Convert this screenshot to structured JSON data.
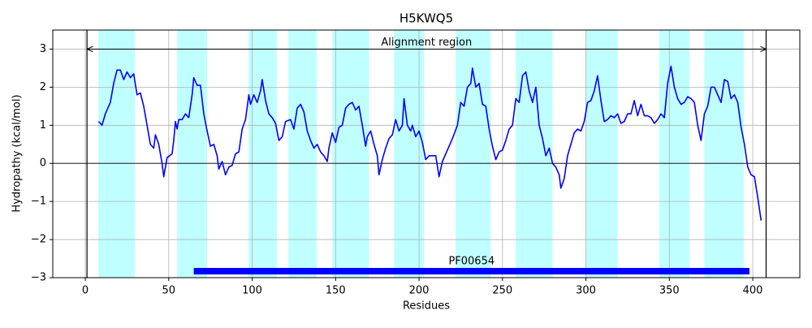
{
  "chart_data": {
    "type": "line",
    "title": "H5KWQ5",
    "x_label": "Residues",
    "y_label": "Hydropathy (kcal/mol)",
    "color": "#0000ff",
    "x": [
      8,
      10,
      12,
      15,
      17,
      19,
      21,
      23,
      25,
      27,
      29,
      31,
      33,
      35,
      37,
      39,
      41,
      42,
      44,
      46,
      47,
      49,
      52,
      53,
      54,
      55,
      56,
      58,
      60,
      62,
      64,
      65,
      67,
      69,
      71,
      73,
      75,
      77,
      79,
      80,
      82,
      84,
      86,
      88,
      90,
      92,
      94,
      96,
      98,
      99,
      101,
      103,
      105,
      106,
      108,
      110,
      112,
      114,
      116,
      118,
      120,
      123,
      125,
      127,
      129,
      131,
      133,
      135,
      137,
      139,
      141,
      143,
      145,
      146,
      148,
      150,
      152,
      154,
      156,
      158,
      160,
      162,
      164,
      166,
      168,
      169,
      171,
      173,
      175,
      176,
      178,
      180,
      182,
      184,
      186,
      188,
      190,
      191,
      193,
      195,
      196,
      198,
      200,
      202,
      204,
      206,
      208,
      210,
      212,
      214,
      216,
      217,
      219,
      220,
      223,
      225,
      227,
      229,
      231,
      232,
      234,
      236,
      238,
      240,
      242,
      244,
      246,
      248,
      250,
      252,
      254,
      256,
      258,
      260,
      262,
      264,
      266,
      268,
      270,
      272,
      274,
      276,
      278,
      280,
      282,
      284,
      285,
      287,
      289,
      291,
      293,
      295,
      297,
      299,
      301,
      303,
      305,
      307,
      309,
      311,
      313,
      315,
      317,
      319,
      321,
      323,
      325,
      327,
      329,
      331,
      333,
      335,
      337,
      339,
      341,
      343,
      345,
      347,
      349,
      351,
      353,
      355,
      357,
      359,
      361,
      363,
      365,
      367,
      369,
      371,
      373,
      375,
      377,
      379,
      381,
      383,
      385,
      387,
      389,
      391,
      393,
      395,
      397,
      399,
      401,
      403,
      405
    ],
    "values": [
      1.1,
      1.0,
      1.3,
      1.6,
      2.1,
      2.45,
      2.45,
      2.2,
      2.4,
      2.25,
      2.35,
      1.8,
      1.85,
      1.5,
      1.0,
      0.5,
      0.4,
      0.75,
      0.5,
      0.0,
      -0.35,
      0.15,
      0.25,
      0.6,
      1.1,
      0.9,
      1.15,
      1.15,
      1.3,
      1.2,
      1.8,
      2.25,
      2.05,
      2.05,
      1.3,
      0.85,
      0.45,
      0.5,
      0.2,
      -0.15,
      0.05,
      -0.3,
      -0.1,
      -0.05,
      0.25,
      0.3,
      0.9,
      1.15,
      1.8,
      1.55,
      1.8,
      1.6,
      1.9,
      2.2,
      1.65,
      1.3,
      1.2,
      1.05,
      0.6,
      0.7,
      1.1,
      1.15,
      0.9,
      1.45,
      1.55,
      1.35,
      0.85,
      0.6,
      0.4,
      0.5,
      0.3,
      0.2,
      0.05,
      0.4,
      0.8,
      0.55,
      0.95,
      1.0,
      1.45,
      1.55,
      1.6,
      1.4,
      1.5,
      1.0,
      0.45,
      0.7,
      0.85,
      0.5,
      0.2,
      -0.3,
      0.1,
      0.4,
      0.65,
      0.75,
      1.15,
      0.85,
      1.0,
      1.7,
      1.0,
      0.85,
      1.0,
      0.7,
      0.85,
      0.55,
      0.1,
      0.2,
      0.2,
      0.2,
      -0.35,
      0.05,
      0.25,
      0.35,
      0.55,
      0.65,
      1.0,
      1.6,
      1.5,
      2.0,
      2.1,
      2.5,
      2.0,
      2.1,
      1.55,
      1.5,
      0.9,
      0.45,
      0.1,
      0.3,
      0.35,
      0.6,
      0.9,
      1.0,
      1.7,
      1.6,
      2.3,
      2.4,
      1.9,
      1.6,
      2.0,
      1.0,
      0.65,
      0.2,
      0.4,
      0.0,
      -0.1,
      -0.3,
      -0.65,
      -0.4,
      0.2,
      0.5,
      0.8,
      0.9,
      0.85,
      1.1,
      1.6,
      1.65,
      1.9,
      2.3,
      1.65,
      1.1,
      1.15,
      1.25,
      1.2,
      1.3,
      1.05,
      1.1,
      1.3,
      1.3,
      1.65,
      1.25,
      1.55,
      1.25,
      1.25,
      1.2,
      1.05,
      1.15,
      1.3,
      1.2,
      2.1,
      2.55,
      2.0,
      1.7,
      1.55,
      1.6,
      1.75,
      1.7,
      1.6,
      1.0,
      0.6,
      1.3,
      1.5,
      2.0,
      2.0,
      1.8,
      1.6,
      2.2,
      2.15,
      1.7,
      1.8,
      1.6,
      0.95,
      0.5,
      -0.1,
      -0.3,
      -0.35,
      -0.9,
      -1.5
    ],
    "shaded_regions": [
      [
        7.8,
        29.7
      ],
      [
        55,
        73
      ],
      [
        97.8,
        114.8
      ],
      [
        121.7,
        138.7
      ],
      [
        148,
        170
      ],
      [
        185,
        203
      ],
      [
        222,
        243
      ],
      [
        258,
        280
      ],
      [
        300,
        319
      ],
      [
        344,
        362
      ],
      [
        371,
        394.6
      ]
    ],
    "shade_color": "#c0ffff",
    "boundaries": [
      1,
      408
    ],
    "hline": 0,
    "alignment": {
      "label": "Alignment region",
      "start": 1,
      "end": 408,
      "y": 3
    },
    "domain": {
      "label": "PF00654",
      "start": 65,
      "end": 398,
      "y": -2.83,
      "color": "#0000ff"
    },
    "xlim": [
      -19.5,
      428.2
    ],
    "ylim": [
      -3,
      3.5
    ],
    "xticks": [
      0,
      50,
      100,
      150,
      200,
      250,
      300,
      350,
      400
    ],
    "yticks": [
      {
        "value": -3,
        "label": "−3"
      },
      {
        "value": -2,
        "label": "−2"
      },
      {
        "value": -1,
        "label": "−1"
      },
      0,
      1,
      2,
      3
    ],
    "grid": true
  }
}
